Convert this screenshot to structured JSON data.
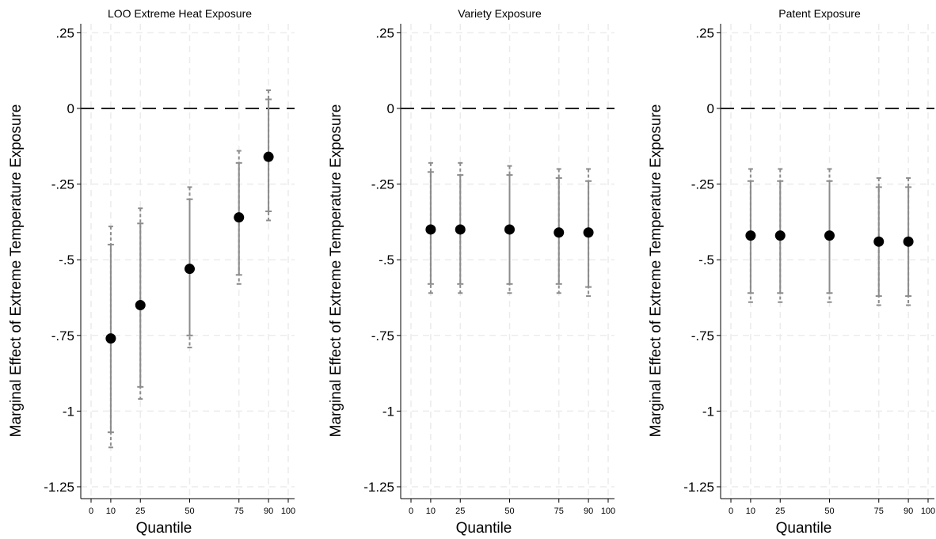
{
  "chart_data": [
    {
      "type": "scatter",
      "title": "LOO Extreme Heat Exposure",
      "xlabel": "Quantile",
      "ylabel": "Marginal Effect of Extreme Temperature Exposure",
      "xlim": [
        0,
        100
      ],
      "ylim": [
        -1.25,
        0.25
      ],
      "x_ticks": [
        0,
        10,
        25,
        50,
        75,
        90,
        100
      ],
      "y_ticks": [
        0.25,
        0,
        -0.25,
        -0.5,
        -0.75,
        -1,
        -1.25
      ],
      "y_tick_labels": [
        ".25",
        "0",
        "-.25",
        "-.5",
        "-.75",
        "-1",
        "-1.25"
      ],
      "reference_line": 0,
      "grid": true,
      "points": [
        {
          "x": 10,
          "y": -0.76,
          "ci95": [
            -1.07,
            -0.45
          ],
          "ci99": [
            -1.12,
            -0.39
          ]
        },
        {
          "x": 25,
          "y": -0.65,
          "ci95": [
            -0.92,
            -0.38
          ],
          "ci99": [
            -0.96,
            -0.33
          ]
        },
        {
          "x": 50,
          "y": -0.53,
          "ci95": [
            -0.75,
            -0.3
          ],
          "ci99": [
            -0.79,
            -0.26
          ]
        },
        {
          "x": 75,
          "y": -0.36,
          "ci95": [
            -0.55,
            -0.18
          ],
          "ci99": [
            -0.58,
            -0.14
          ]
        },
        {
          "x": 90,
          "y": -0.16,
          "ci95": [
            -0.34,
            0.03
          ],
          "ci99": [
            -0.37,
            0.06
          ]
        }
      ]
    },
    {
      "type": "scatter",
      "title": "Variety Exposure",
      "xlabel": "Quantile",
      "ylabel": "Marginal Effect of Extreme Temperature Exposure",
      "xlim": [
        0,
        100
      ],
      "ylim": [
        -1.25,
        0.25
      ],
      "x_ticks": [
        0,
        10,
        25,
        50,
        75,
        90,
        100
      ],
      "y_ticks": [
        0.25,
        0,
        -0.25,
        -0.5,
        -0.75,
        -1,
        -1.25
      ],
      "y_tick_labels": [
        ".25",
        "0",
        "-.25",
        "-.5",
        "-.75",
        "-1",
        "-1.25"
      ],
      "reference_line": 0,
      "grid": true,
      "points": [
        {
          "x": 10,
          "y": -0.4,
          "ci95": [
            -0.58,
            -0.21
          ],
          "ci99": [
            -0.61,
            -0.18
          ]
        },
        {
          "x": 25,
          "y": -0.4,
          "ci95": [
            -0.58,
            -0.22
          ],
          "ci99": [
            -0.61,
            -0.18
          ]
        },
        {
          "x": 50,
          "y": -0.4,
          "ci95": [
            -0.58,
            -0.22
          ],
          "ci99": [
            -0.61,
            -0.19
          ]
        },
        {
          "x": 75,
          "y": -0.41,
          "ci95": [
            -0.58,
            -0.23
          ],
          "ci99": [
            -0.61,
            -0.2
          ]
        },
        {
          "x": 90,
          "y": -0.41,
          "ci95": [
            -0.59,
            -0.24
          ],
          "ci99": [
            -0.62,
            -0.2
          ]
        }
      ]
    },
    {
      "type": "scatter",
      "title": "Patent Exposure",
      "xlabel": "Quantile",
      "ylabel": "Marginal Effect of Extreme Temperature Exposure",
      "xlim": [
        0,
        100
      ],
      "ylim": [
        -1.25,
        0.25
      ],
      "x_ticks": [
        0,
        10,
        25,
        50,
        75,
        90,
        100
      ],
      "y_ticks": [
        0.25,
        0,
        -0.25,
        -0.5,
        -0.75,
        -1,
        -1.25
      ],
      "y_tick_labels": [
        ".25",
        "0",
        "-.25",
        "-.5",
        "-.75",
        "-1",
        "-1.25"
      ],
      "reference_line": 0,
      "grid": true,
      "points": [
        {
          "x": 10,
          "y": -0.42,
          "ci95": [
            -0.61,
            -0.24
          ],
          "ci99": [
            -0.64,
            -0.2
          ]
        },
        {
          "x": 25,
          "y": -0.42,
          "ci95": [
            -0.61,
            -0.24
          ],
          "ci99": [
            -0.64,
            -0.2
          ]
        },
        {
          "x": 50,
          "y": -0.42,
          "ci95": [
            -0.61,
            -0.24
          ],
          "ci99": [
            -0.64,
            -0.2
          ]
        },
        {
          "x": 75,
          "y": -0.44,
          "ci95": [
            -0.62,
            -0.26
          ],
          "ci99": [
            -0.65,
            -0.23
          ]
        },
        {
          "x": 90,
          "y": -0.44,
          "ci95": [
            -0.62,
            -0.26
          ],
          "ci99": [
            -0.65,
            -0.23
          ]
        }
      ]
    }
  ]
}
